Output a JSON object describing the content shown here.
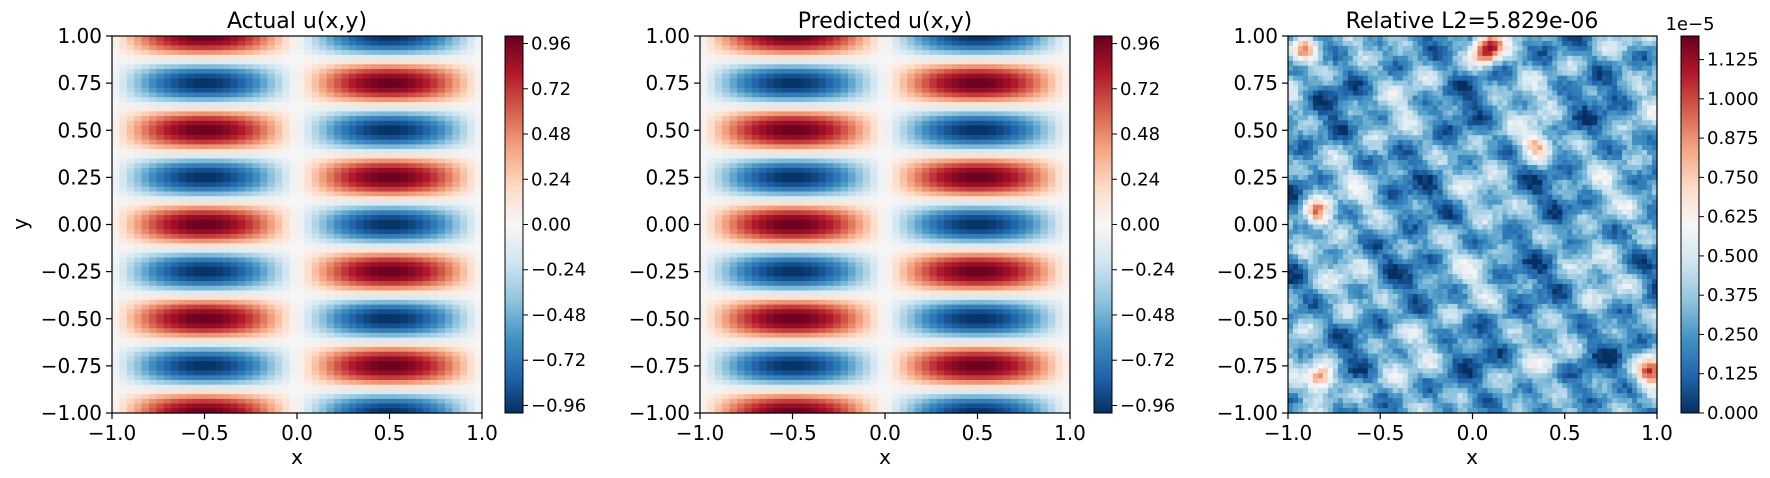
{
  "chart_data": [
    {
      "type": "heatmap",
      "title": "Actual u(x,y)",
      "xlabel": "x",
      "ylabel": "y",
      "xlim": [
        -1.0,
        1.0
      ],
      "ylim": [
        -1.0,
        1.0
      ],
      "x_ticks": [
        "−1.0",
        "−0.5",
        "0.0",
        "0.5",
        "1.0"
      ],
      "x_tick_values": [
        -1.0,
        -0.5,
        0.0,
        0.5,
        1.0
      ],
      "y_ticks": [
        "−1.00",
        "−0.75",
        "−0.50",
        "−0.25",
        "0.00",
        "0.25",
        "0.50",
        "0.75",
        "1.00"
      ],
      "y_tick_values": [
        -1.0,
        -0.75,
        -0.5,
        -0.25,
        0.0,
        0.25,
        0.5,
        0.75,
        1.0
      ],
      "field": "u(x,y) = -sin(pi x) * cos(4 pi y)",
      "vmin": -1.0,
      "vmax": 1.0,
      "colormap": "RdBu_r",
      "colorbar_ticks": [
        "0.96",
        "0.72",
        "0.48",
        "0.24",
        "0.00",
        "−0.24",
        "−0.48",
        "−0.72",
        "−0.96"
      ],
      "colorbar_tick_values": [
        0.96,
        0.72,
        0.48,
        0.24,
        0.0,
        -0.24,
        -0.48,
        -0.72,
        -0.96
      ]
    },
    {
      "type": "heatmap",
      "title": "Predicted u(x,y)",
      "xlabel": "x",
      "ylabel": "",
      "xlim": [
        -1.0,
        1.0
      ],
      "ylim": [
        -1.0,
        1.0
      ],
      "x_ticks": [
        "−1.0",
        "−0.5",
        "0.0",
        "0.5",
        "1.0"
      ],
      "x_tick_values": [
        -1.0,
        -0.5,
        0.0,
        0.5,
        1.0
      ],
      "y_ticks": [
        "−1.00",
        "−0.75",
        "−0.50",
        "−0.25",
        "0.00",
        "0.25",
        "0.50",
        "0.75",
        "1.00"
      ],
      "y_tick_values": [
        -1.0,
        -0.75,
        -0.5,
        -0.25,
        0.0,
        0.25,
        0.5,
        0.75,
        1.0
      ],
      "field": "u(x,y) = -sin(pi x) * cos(4 pi y)",
      "vmin": -1.0,
      "vmax": 1.0,
      "colormap": "RdBu_r",
      "colorbar_ticks": [
        "0.96",
        "0.72",
        "0.48",
        "0.24",
        "0.00",
        "−0.24",
        "−0.48",
        "−0.72",
        "−0.96"
      ],
      "colorbar_tick_values": [
        0.96,
        0.72,
        0.48,
        0.24,
        0.0,
        -0.24,
        -0.48,
        -0.72,
        -0.96
      ]
    },
    {
      "type": "heatmap",
      "title": "Relative L2=5.829e-06",
      "xlabel": "x",
      "ylabel": "",
      "xlim": [
        -1.0,
        1.0
      ],
      "ylim": [
        -1.0,
        1.0
      ],
      "x_ticks": [
        "−1.0",
        "−0.5",
        "0.0",
        "0.5",
        "1.0"
      ],
      "x_tick_values": [
        -1.0,
        -0.5,
        0.0,
        0.5,
        1.0
      ],
      "y_ticks": [
        "−1.00",
        "−0.75",
        "−0.50",
        "−0.25",
        "0.00",
        "0.25",
        "0.50",
        "0.75",
        "1.00"
      ],
      "y_tick_values": [
        -1.0,
        -0.75,
        -0.5,
        -0.25,
        0.0,
        0.25,
        0.5,
        0.75,
        1.0
      ],
      "field": "absolute error |u_pred - u_true|, noisy, mostly 1e-6 to 6e-6 with hotspots up to ~1.2e-5",
      "hotspots": [
        {
          "x": 0.08,
          "y": 0.93,
          "value": 1.15
        },
        {
          "x": -0.82,
          "y": -0.82,
          "value": 1.05
        },
        {
          "x": -0.85,
          "y": 0.06,
          "value": 0.95
        },
        {
          "x": 0.97,
          "y": -0.78,
          "value": 0.9
        },
        {
          "x": -0.92,
          "y": 0.92,
          "value": 0.85
        },
        {
          "x": 0.35,
          "y": 0.42,
          "value": 0.8
        }
      ],
      "vmin": 0.0,
      "vmax": 1.2,
      "scale_label": "1e−5",
      "colormap": "RdBu_r",
      "colorbar_ticks": [
        "1.125",
        "1.000",
        "0.875",
        "0.750",
        "0.625",
        "0.500",
        "0.375",
        "0.250",
        "0.125",
        "0.000"
      ],
      "colorbar_tick_values": [
        1.125,
        1.0,
        0.875,
        0.75,
        0.625,
        0.5,
        0.375,
        0.25,
        0.125,
        0.0
      ]
    }
  ]
}
